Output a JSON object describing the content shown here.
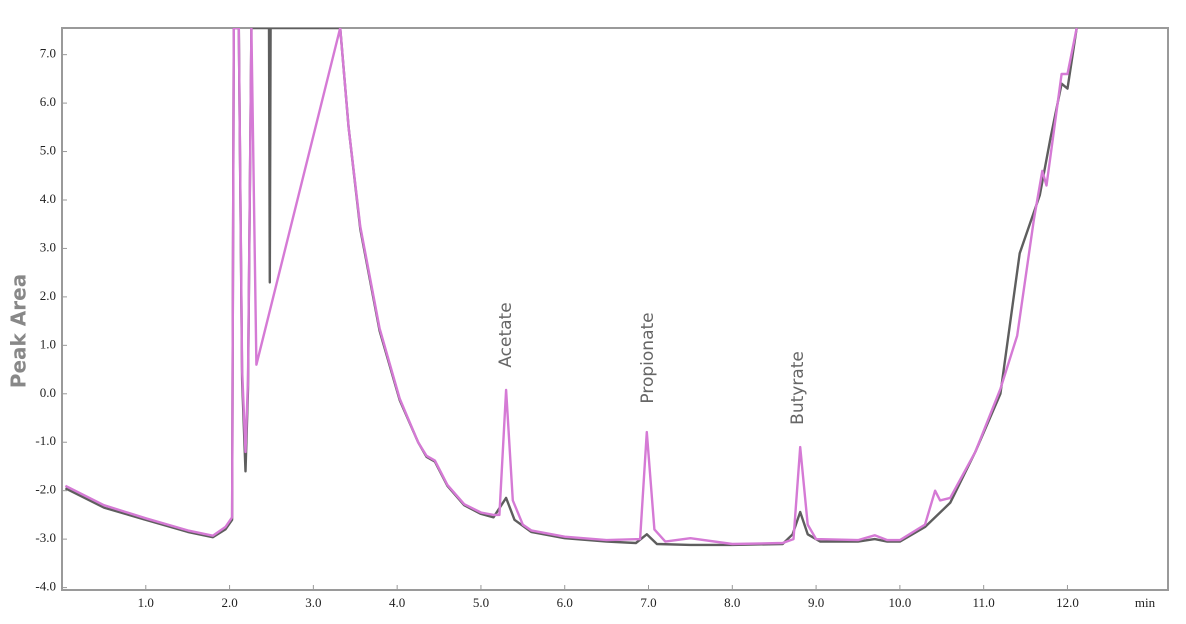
{
  "chart_data": {
    "type": "line",
    "y_label": "Peak Area",
    "x_unit_label": "min",
    "annotations": [
      "Acetate",
      "Propionate",
      "Butyrate"
    ],
    "xlim": [
      0,
      13.2
    ],
    "ylim": [
      -4.05,
      7.55
    ],
    "xticks": [
      {
        "value": 1,
        "label": "1.0"
      },
      {
        "value": 2,
        "label": "2.0"
      },
      {
        "value": 3,
        "label": "3.0"
      },
      {
        "value": 4,
        "label": "4.0"
      },
      {
        "value": 5,
        "label": "5.0"
      },
      {
        "value": 6,
        "label": "6.0"
      },
      {
        "value": 7,
        "label": "7.0"
      },
      {
        "value": 8,
        "label": "8.0"
      },
      {
        "value": 9,
        "label": "9.0"
      },
      {
        "value": 10,
        "label": "10.0"
      },
      {
        "value": 11,
        "label": "11.0"
      },
      {
        "value": 12,
        "label": "12.0"
      }
    ],
    "yticks": [
      {
        "value": -4,
        "label": "-4.0"
      },
      {
        "value": -3,
        "label": "-3.0"
      },
      {
        "value": -2,
        "label": "-2.0"
      },
      {
        "value": -1,
        "label": "-1.0"
      },
      {
        "value": 0,
        "label": "0.0"
      },
      {
        "value": 1,
        "label": "1.0"
      },
      {
        "value": 2,
        "label": "2.0"
      },
      {
        "value": 3,
        "label": "3.0"
      },
      {
        "value": 4,
        "label": "4.0"
      },
      {
        "value": 5,
        "label": "5.0"
      },
      {
        "value": 6,
        "label": "6.0"
      },
      {
        "value": 7,
        "label": "7.0"
      }
    ],
    "series": [
      {
        "color": "#5e5e5e",
        "x": [
          0.04,
          0.5,
          1.0,
          1.5,
          1.8,
          1.95,
          2.03,
          2.05,
          2.11,
          2.15,
          2.19,
          2.22,
          2.26,
          2.47,
          2.48,
          2.49,
          3.32,
          3.42,
          3.56,
          3.79,
          4.03,
          4.25,
          4.35,
          4.45,
          4.6,
          4.8,
          5.0,
          5.15,
          5.3,
          5.4,
          5.6,
          6.0,
          6.5,
          6.85,
          6.98,
          7.1,
          7.5,
          8.0,
          8.6,
          8.72,
          8.81,
          8.9,
          9.05,
          9.5,
          9.7,
          9.85,
          10.0,
          10.3,
          10.6,
          10.9,
          11.2,
          11.43,
          11.67,
          11.8,
          11.93,
          12.0,
          12.11
        ],
        "values": [
          -1.95,
          -2.35,
          -2.6,
          -2.85,
          -2.96,
          -2.8,
          -2.6,
          7.55,
          7.55,
          0.3,
          -1.6,
          0.1,
          7.55,
          7.55,
          2.3,
          7.55,
          7.55,
          5.5,
          3.4,
          1.3,
          -0.13,
          -1.0,
          -1.3,
          -1.4,
          -1.9,
          -2.3,
          -2.48,
          -2.55,
          -2.15,
          -2.6,
          -2.85,
          -2.98,
          -3.05,
          -3.08,
          -2.9,
          -3.1,
          -3.12,
          -3.12,
          -3.1,
          -2.9,
          -2.44,
          -2.9,
          -3.05,
          -3.05,
          -3.0,
          -3.05,
          -3.05,
          -2.75,
          -2.25,
          -1.2,
          0.0,
          2.9,
          4.1,
          5.3,
          6.4,
          6.3,
          7.55
        ]
      },
      {
        "color": "#d57ad5",
        "x": [
          0.04,
          0.5,
          1.0,
          1.5,
          1.8,
          1.95,
          2.03,
          2.05,
          2.11,
          2.15,
          2.19,
          2.22,
          2.26,
          2.32,
          3.32,
          3.42,
          3.56,
          3.79,
          4.03,
          4.25,
          4.35,
          4.45,
          4.6,
          4.8,
          5.0,
          5.15,
          5.22,
          5.3,
          5.38,
          5.5,
          5.6,
          6.0,
          6.5,
          6.9,
          6.98,
          7.07,
          7.2,
          7.5,
          8.0,
          8.6,
          8.73,
          8.81,
          8.9,
          9.0,
          9.5,
          9.7,
          9.85,
          10.0,
          10.3,
          10.42,
          10.48,
          10.6,
          10.9,
          11.2,
          11.4,
          11.6,
          11.7,
          11.75,
          11.93,
          12.0,
          12.11
        ],
        "values": [
          -1.9,
          -2.3,
          -2.57,
          -2.82,
          -2.93,
          -2.75,
          -2.55,
          7.55,
          7.55,
          0.5,
          -1.2,
          0.3,
          7.55,
          0.6,
          7.55,
          5.5,
          3.45,
          1.35,
          -0.1,
          -1.0,
          -1.28,
          -1.38,
          -1.88,
          -2.28,
          -2.45,
          -2.5,
          -2.5,
          0.08,
          -2.2,
          -2.7,
          -2.82,
          -2.95,
          -3.02,
          -3.0,
          -0.79,
          -2.8,
          -3.05,
          -2.98,
          -3.1,
          -3.08,
          -3.0,
          -1.1,
          -2.7,
          -3.0,
          -3.02,
          -2.92,
          -3.02,
          -3.02,
          -2.7,
          -2.0,
          -2.2,
          -2.15,
          -1.2,
          0.1,
          1.2,
          3.6,
          4.6,
          4.3,
          6.6,
          6.6,
          7.55
        ]
      }
    ]
  }
}
